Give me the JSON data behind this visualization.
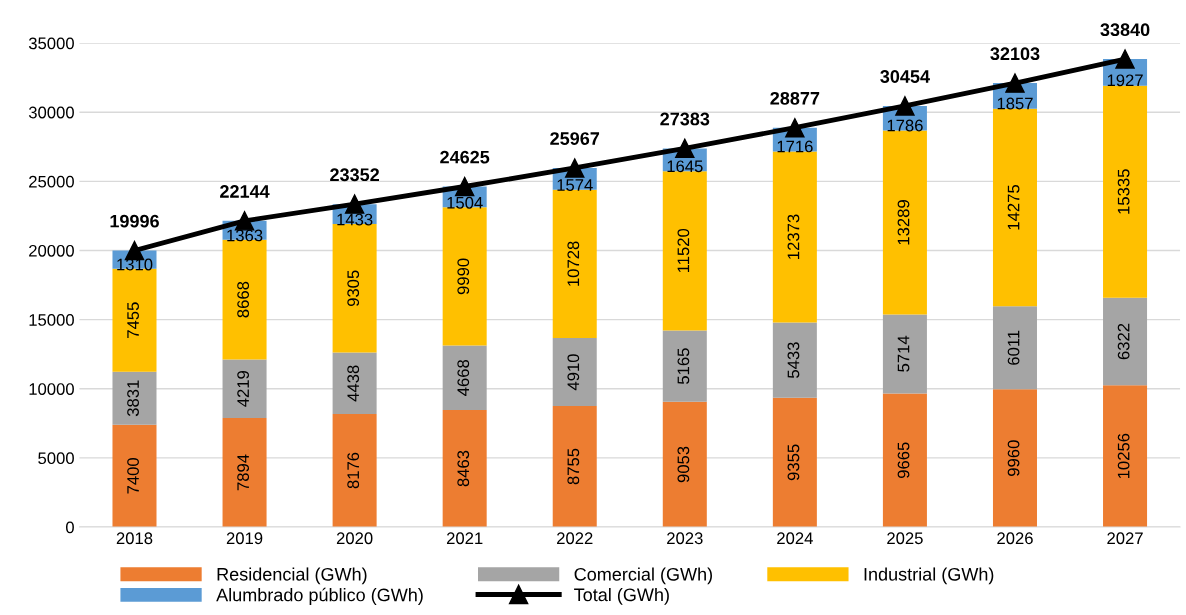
{
  "chart_data": {
    "type": "bar",
    "stacked": true,
    "categories": [
      "2018",
      "2019",
      "2020",
      "2021",
      "2022",
      "2023",
      "2024",
      "2025",
      "2026",
      "2027"
    ],
    "series": [
      {
        "name": "Residencial (GWh)",
        "color": "#ed7d31",
        "values": [
          7400,
          7894,
          8176,
          8463,
          8755,
          9053,
          9355,
          9665,
          9960,
          10256
        ]
      },
      {
        "name": "Comercial (GWh)",
        "color": "#a5a5a5",
        "values": [
          3831,
          4219,
          4438,
          4668,
          4910,
          5165,
          5433,
          5714,
          6011,
          6322
        ]
      },
      {
        "name": "Industrial (GWh)",
        "color": "#ffc000",
        "values": [
          7455,
          8668,
          9305,
          9990,
          10728,
          11520,
          12373,
          13289,
          14275,
          15335
        ]
      },
      {
        "name": "Alumbrado público (GWh)",
        "color": "#5b9bd5",
        "values": [
          1310,
          1363,
          1433,
          1504,
          1574,
          1645,
          1716,
          1786,
          1857,
          1927
        ]
      },
      {
        "name": "Total (GWh)",
        "type": "line",
        "color": "#000000",
        "marker": "triangle",
        "values": [
          19996,
          22144,
          23352,
          24625,
          25967,
          27383,
          28877,
          30454,
          32103,
          33840
        ]
      }
    ],
    "ylim": [
      0,
      35000
    ],
    "yticks": [
      0,
      5000,
      10000,
      15000,
      20000,
      25000,
      30000,
      35000
    ],
    "grid": "y",
    "legend": "bottom",
    "data_labels": true
  }
}
